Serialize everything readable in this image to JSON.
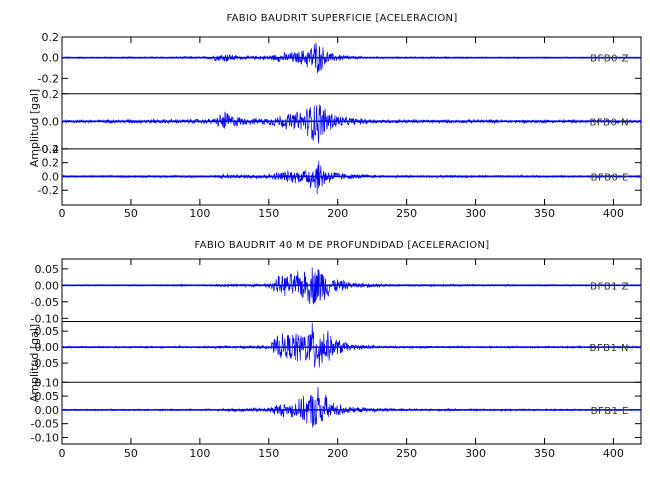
{
  "chart_data": [
    {
      "type": "line",
      "title": "FABIO BAUDRIT SUPERFICIE [ACELERACION]",
      "xlabel": "",
      "ylabel": "Amplitud [gal]",
      "xlim": [
        0,
        420
      ],
      "x_ticks": [
        "0",
        "50",
        "100",
        "150",
        "200",
        "250",
        "300",
        "350",
        "400"
      ],
      "grid": false,
      "panels": [
        {
          "name": "BFB0 Z",
          "ylim": [
            -0.35,
            0.2
          ],
          "y_ticks": [
            "0.2",
            "0.0",
            "-0.2"
          ],
          "noise": 0.006,
          "envelope": [
            [
              0,
              0.008
            ],
            [
              105,
              0.012
            ],
            [
              115,
              0.045
            ],
            [
              120,
              0.05
            ],
            [
              128,
              0.02
            ],
            [
              140,
              0.02
            ],
            [
              152,
              0.03
            ],
            [
              160,
              0.055
            ],
            [
              172,
              0.07
            ],
            [
              180,
              0.13
            ],
            [
              184,
              0.2
            ],
            [
              188,
              0.14
            ],
            [
              195,
              0.05
            ],
            [
              210,
              0.02
            ],
            [
              230,
              0.01
            ],
            [
              420,
              0.006
            ]
          ]
        },
        {
          "name": "BFB0 N",
          "ylim": [
            -0.2,
            0.2
          ],
          "y_ticks": [
            "0.2",
            "0.0",
            "-0.2"
          ],
          "noise": 0.01,
          "envelope": [
            [
              0,
              0.012
            ],
            [
              110,
              0.02
            ],
            [
              118,
              0.09
            ],
            [
              124,
              0.05
            ],
            [
              135,
              0.025
            ],
            [
              150,
              0.03
            ],
            [
              160,
              0.06
            ],
            [
              175,
              0.09
            ],
            [
              182,
              0.17
            ],
            [
              186,
              0.19
            ],
            [
              192,
              0.1
            ],
            [
              205,
              0.035
            ],
            [
              230,
              0.015
            ],
            [
              420,
              0.012
            ]
          ]
        },
        {
          "name": "BFB0 E",
          "ylim": [
            -0.4,
            0.4
          ],
          "y_ticks": [
            "0.4",
            "0.2",
            "0.0",
            "-0.2"
          ],
          "noise": 0.012,
          "envelope": [
            [
              0,
              0.015
            ],
            [
              110,
              0.02
            ],
            [
              118,
              0.05
            ],
            [
              125,
              0.03
            ],
            [
              150,
              0.04
            ],
            [
              160,
              0.09
            ],
            [
              175,
              0.12
            ],
            [
              182,
              0.25
            ],
            [
              186,
              0.31
            ],
            [
              192,
              0.12
            ],
            [
              205,
              0.05
            ],
            [
              230,
              0.02
            ],
            [
              420,
              0.015
            ]
          ]
        }
      ]
    },
    {
      "type": "line",
      "title": "FABIO BAUDRIT 40 M DE PROFUNDIDAD [ACELERACION]",
      "xlabel": "",
      "ylabel": "Amplitud [gal]",
      "xlim": [
        0,
        420
      ],
      "x_ticks": [
        "0",
        "50",
        "100",
        "150",
        "200",
        "250",
        "300",
        "350",
        "400"
      ],
      "grid": false,
      "panels": [
        {
          "name": "BFB1 Z",
          "ylim": [
            -0.11,
            0.08
          ],
          "y_ticks": [
            "0.05",
            "0.00",
            "-0.05",
            "-0.10"
          ],
          "noise": 0.002,
          "envelope": [
            [
              0,
              0.002
            ],
            [
              110,
              0.003
            ],
            [
              118,
              0.006
            ],
            [
              128,
              0.004
            ],
            [
              150,
              0.006
            ],
            [
              156,
              0.03
            ],
            [
              165,
              0.04
            ],
            [
              175,
              0.05
            ],
            [
              182,
              0.07
            ],
            [
              186,
              0.075
            ],
            [
              195,
              0.03
            ],
            [
              210,
              0.01
            ],
            [
              240,
              0.004
            ],
            [
              420,
              0.002
            ]
          ]
        },
        {
          "name": "BFB1 N",
          "ylim": [
            -0.11,
            0.08
          ],
          "y_ticks": [
            "0.05",
            "0.00",
            "-0.05"
          ],
          "noise": 0.002,
          "envelope": [
            [
              0,
              0.003
            ],
            [
              110,
              0.004
            ],
            [
              150,
              0.006
            ],
            [
              156,
              0.04
            ],
            [
              165,
              0.05
            ],
            [
              175,
              0.06
            ],
            [
              182,
              0.085
            ],
            [
              186,
              0.1
            ],
            [
              195,
              0.04
            ],
            [
              210,
              0.01
            ],
            [
              240,
              0.004
            ],
            [
              420,
              0.003
            ]
          ]
        },
        {
          "name": "BFB1 E",
          "ylim": [
            -0.12,
            0.1
          ],
          "y_ticks": [
            "0.10",
            "0.05",
            "0.00",
            "-0.05",
            "-0.10"
          ],
          "noise": 0.003,
          "envelope": [
            [
              0,
              0.003
            ],
            [
              110,
              0.004
            ],
            [
              150,
              0.01
            ],
            [
              156,
              0.025
            ],
            [
              165,
              0.03
            ],
            [
              175,
              0.05
            ],
            [
              182,
              0.08
            ],
            [
              186,
              0.1
            ],
            [
              195,
              0.035
            ],
            [
              210,
              0.012
            ],
            [
              240,
              0.005
            ],
            [
              420,
              0.003
            ]
          ]
        }
      ]
    }
  ],
  "colors": {
    "trace": "#0000ff",
    "axis": "#000000"
  }
}
